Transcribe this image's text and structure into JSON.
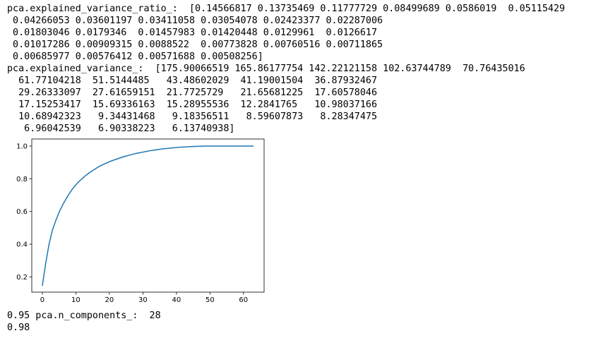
{
  "output": {
    "ratio_lines": [
      "pca.explained_variance_ratio_:  [0.14566817 0.13735469 0.11777729 0.08499689 0.0586019  0.05115429",
      " 0.04266053 0.03601197 0.03411058 0.03054078 0.02423377 0.02287006",
      " 0.01803046 0.0179346  0.01457983 0.01420448 0.0129961  0.0126617",
      " 0.01017286 0.00909315 0.0088522  0.00773828 0.00760516 0.00711865",
      " 0.00685977 0.00576412 0.00571688 0.00508256]"
    ],
    "variance_lines": [
      "pca.explained_variance_:  [175.90066519 165.86177754 142.22121158 102.63744789  70.76435016",
      "  61.77104218  51.5144485   43.48602029  41.19001504  36.87932467",
      "  29.26333097  27.61659151  21.7725729   21.65681225  17.60578046",
      "  17.15253417  15.69336163  15.28955536  12.2841765   10.98037166",
      "  10.68942323   9.34431468   9.18356511   8.59607873   8.28347475",
      "   6.96042539   6.90338223   6.13740938]"
    ],
    "tail_lines": [
      "0.95 pca.n_components_:  28",
      "0.98"
    ]
  },
  "chart_data": {
    "type": "line",
    "xlim": [
      -3.15,
      66.15
    ],
    "ylim": [
      0.107,
      1.043
    ],
    "xticks": [
      0,
      10,
      20,
      30,
      40,
      50,
      60
    ],
    "yticks": [
      0.2,
      0.4,
      0.6,
      0.8,
      1.0
    ],
    "xtick_labels": [
      "0",
      "10",
      "20",
      "30",
      "40",
      "50",
      "60"
    ],
    "ytick_labels": [
      "0.2",
      "0.4",
      "0.6",
      "0.8",
      "1.0"
    ],
    "line_color": "#1f77b4",
    "grid": false,
    "series": [
      {
        "x": [
          0,
          1,
          2,
          3,
          4,
          5,
          6,
          7,
          8,
          9,
          10,
          11,
          12,
          13,
          14,
          15,
          16,
          17,
          18,
          19,
          20,
          21,
          22,
          23,
          24,
          25,
          26,
          27,
          28,
          29,
          30,
          31,
          32,
          33,
          34,
          35,
          36,
          37,
          38,
          39,
          40,
          41,
          42,
          43,
          44,
          45,
          46,
          47,
          48,
          49,
          50,
          51,
          52,
          53,
          54,
          55,
          56,
          57,
          58,
          59,
          60,
          61,
          62,
          63
        ],
        "y": [
          0.146,
          0.283,
          0.4,
          0.485,
          0.544,
          0.595,
          0.638,
          0.674,
          0.708,
          0.738,
          0.763,
          0.785,
          0.803,
          0.821,
          0.836,
          0.85,
          0.863,
          0.876,
          0.886,
          0.895,
          0.904,
          0.912,
          0.919,
          0.926,
          0.933,
          0.939,
          0.944,
          0.95,
          0.955,
          0.959,
          0.963,
          0.967,
          0.971,
          0.974,
          0.977,
          0.98,
          0.983,
          0.985,
          0.987,
          0.989,
          0.991,
          0.993,
          0.994,
          0.995,
          0.996,
          0.997,
          0.998,
          0.999,
          0.9995,
          0.9998,
          1.0,
          1.0,
          1.0,
          1.0,
          1.0,
          1.0,
          1.0,
          1.0,
          1.0,
          1.0,
          1.0,
          1.0,
          1.0,
          1.0
        ]
      }
    ]
  }
}
